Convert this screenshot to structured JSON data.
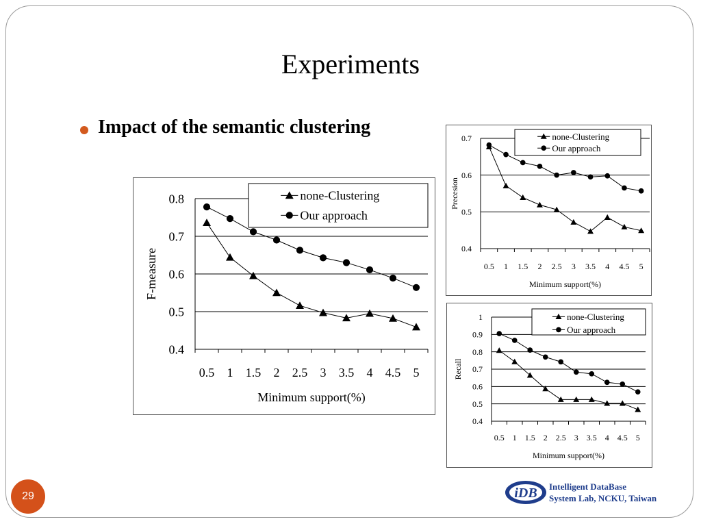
{
  "slide": {
    "title": "Experiments",
    "bullet": "Impact of the semantic clustering",
    "page_number": "29",
    "footer": {
      "line1": "Intelligent DataBase",
      "line2": "System Lab, NCKU, Taiwan",
      "logo_text": "iDB"
    }
  },
  "colors": {
    "bullet": "#d35a1e",
    "page_badge": "#d4511a",
    "footer_text": "#1f3d8c"
  },
  "chart_data": [
    {
      "type": "line",
      "ylabel": "F-measure",
      "xlabel": "Minimum support(%)",
      "categories": [
        "0.5",
        "1",
        "1.5",
        "2",
        "2.5",
        "3",
        "3.5",
        "4",
        "4.5",
        "5"
      ],
      "yticks": [
        "0.4",
        "0.5",
        "0.6",
        "0.7",
        "0.8"
      ],
      "ylim": [
        0.4,
        0.8
      ],
      "series": [
        {
          "name": "none-Clustering",
          "marker": "triangle",
          "values": [
            0.736,
            0.644,
            0.595,
            0.55,
            0.516,
            0.497,
            0.483,
            0.495,
            0.482,
            0.459
          ]
        },
        {
          "name": "Our approach",
          "marker": "circle",
          "values": [
            0.778,
            0.747,
            0.712,
            0.69,
            0.663,
            0.643,
            0.63,
            0.611,
            0.589,
            0.564
          ]
        }
      ],
      "legend": "top-right",
      "grid": true
    },
    {
      "type": "line",
      "ylabel": "Precesion",
      "xlabel": "Minimum support(%)",
      "categories": [
        "0.5",
        "1",
        "1.5",
        "2",
        "2.5",
        "3",
        "3.5",
        "4",
        "4.5",
        "5"
      ],
      "yticks": [
        "0.4",
        "0.5",
        "0.6",
        "0.7"
      ],
      "ylim": [
        0.4,
        0.7
      ],
      "series": [
        {
          "name": "none-Clustering",
          "marker": "triangle",
          "values": [
            0.677,
            0.571,
            0.539,
            0.519,
            0.506,
            0.472,
            0.447,
            0.485,
            0.459,
            0.449
          ]
        },
        {
          "name": "Our approach",
          "marker": "circle",
          "values": [
            0.682,
            0.656,
            0.634,
            0.624,
            0.6,
            0.607,
            0.595,
            0.598,
            0.565,
            0.557
          ]
        }
      ],
      "legend": "top-right",
      "grid": true
    },
    {
      "type": "line",
      "ylabel": "Recall",
      "xlabel": "Minimum support(%)",
      "categories": [
        "0.5",
        "1",
        "1.5",
        "2",
        "2.5",
        "3",
        "3.5",
        "4",
        "4.5",
        "5"
      ],
      "yticks": [
        "0.4",
        "0.5",
        "0.6",
        "0.7",
        "0.8",
        "0.9",
        "1"
      ],
      "ylim": [
        0.4,
        1.0
      ],
      "series": [
        {
          "name": "none-Clustering",
          "marker": "triangle",
          "values": [
            0.808,
            0.743,
            0.665,
            0.587,
            0.525,
            0.525,
            0.525,
            0.503,
            0.503,
            0.467
          ]
        },
        {
          "name": "Our approach",
          "marker": "circle",
          "values": [
            0.905,
            0.866,
            0.81,
            0.77,
            0.742,
            0.683,
            0.673,
            0.624,
            0.614,
            0.569
          ]
        }
      ],
      "legend": "top-right",
      "grid": true
    }
  ]
}
